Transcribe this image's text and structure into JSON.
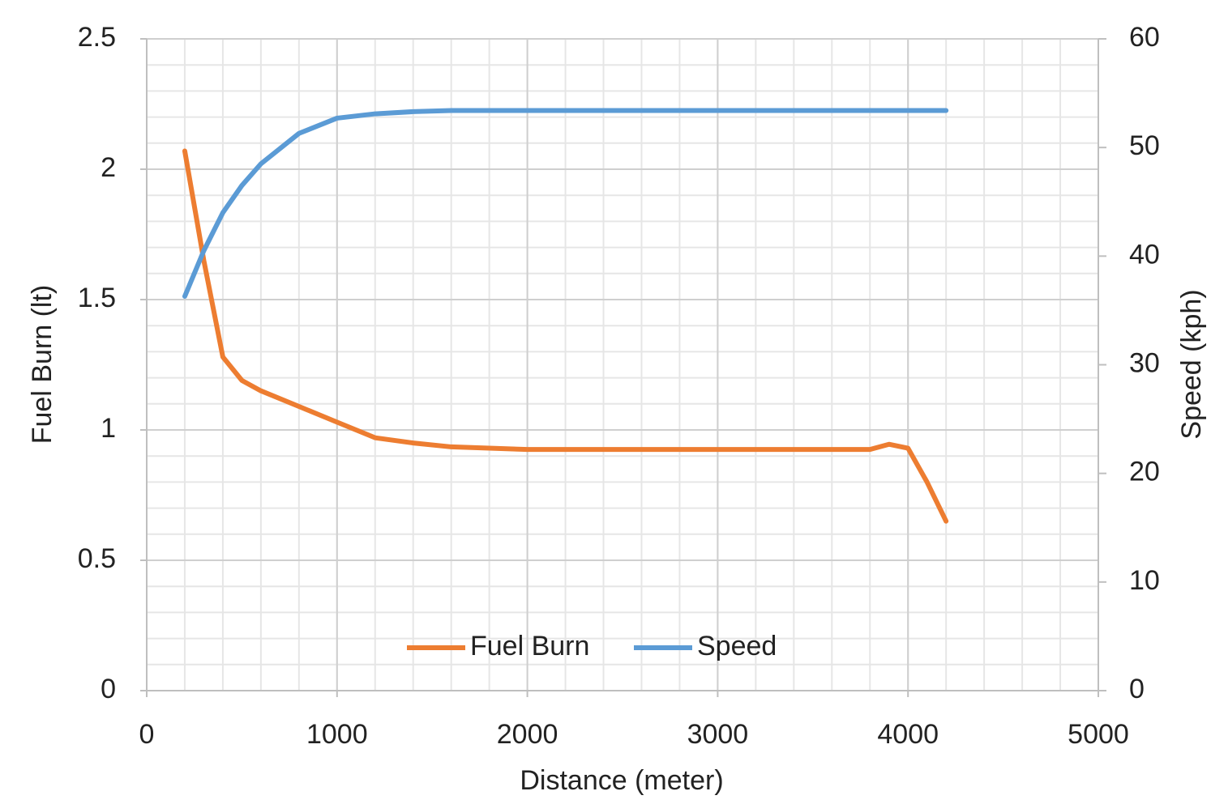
{
  "chart_data": {
    "type": "line",
    "x_label": "Distance (meter)",
    "y_label": "Fuel Burn (lt)",
    "y2_label": "Speed (kph)",
    "x": [
      200,
      300,
      400,
      500,
      600,
      800,
      1000,
      1200,
      1400,
      1600,
      2000,
      2500,
      3000,
      3500,
      3800,
      3900,
      4000,
      4100,
      4200
    ],
    "series": [
      {
        "name": "Fuel Burn",
        "color": "#ed7d31",
        "values": [
          2.07,
          1.65,
          1.28,
          1.19,
          1.15,
          1.09,
          1.03,
          0.97,
          0.95,
          0.935,
          0.925,
          0.925,
          0.925,
          0.925,
          0.925,
          0.945,
          0.93,
          0.8,
          0.65
        ]
      },
      {
        "name": "Speed",
        "color": "#5b9bd5",
        "axis": "y2",
        "values": [
          36.3,
          40.5,
          44,
          46.5,
          48.5,
          51.3,
          52.7,
          53.1,
          53.3,
          53.4,
          53.4,
          53.4,
          53.4,
          53.4,
          53.4,
          53.4,
          53.4,
          53.4,
          53.4
        ]
      }
    ],
    "xlim": [
      0,
      5000
    ],
    "xticks": [
      0,
      1000,
      2000,
      3000,
      4000,
      5000
    ],
    "ylim": [
      0,
      2.5
    ],
    "yticks": [
      0,
      0.5,
      1,
      1.5,
      2,
      2.5
    ],
    "y2lim": [
      0,
      60
    ],
    "y2ticks": [
      0,
      10,
      20,
      30,
      40,
      50,
      60
    ],
    "grid": true,
    "minor_grid": true,
    "legend": "bottom"
  }
}
